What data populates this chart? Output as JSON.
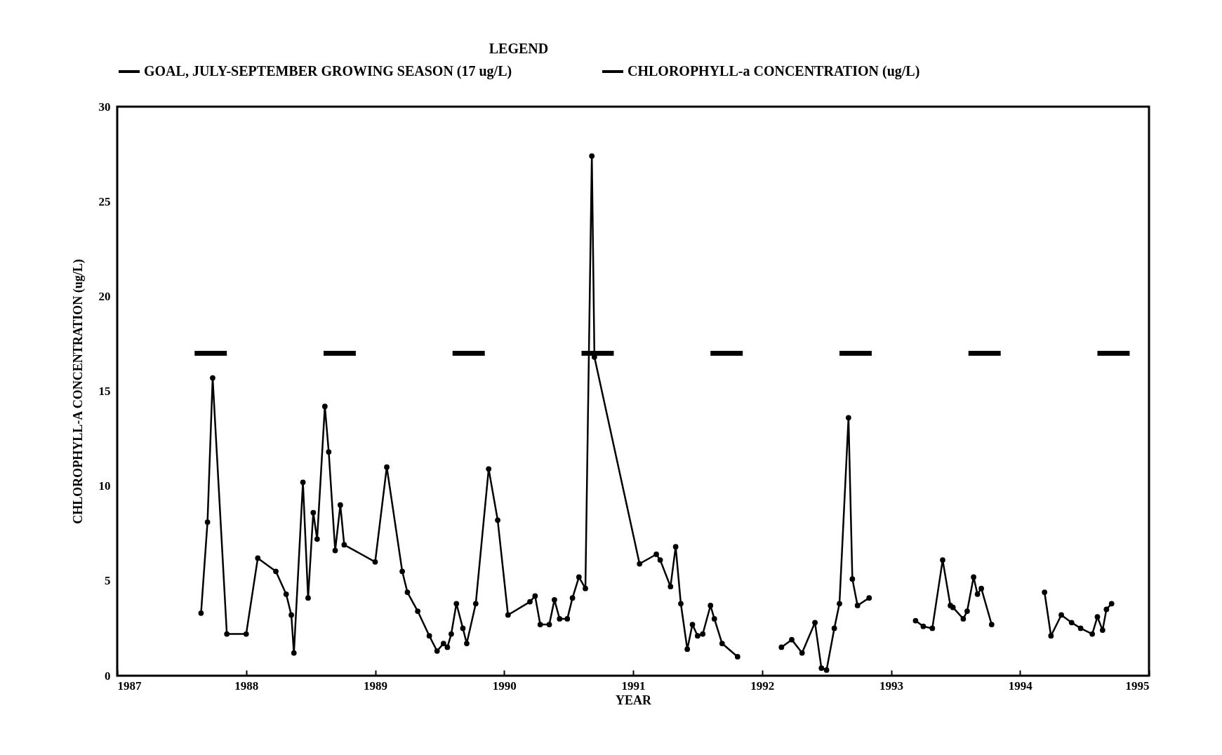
{
  "chart_data": {
    "type": "line",
    "xlabel": "YEAR",
    "ylabel": "CHLOROPHYLL-A CONCENTRATION (ug/L)",
    "legend_title": "LEGEND",
    "legend": "top",
    "grid": false,
    "xlim": [
      1987,
      1995
    ],
    "xticks": [
      1987,
      1988,
      1989,
      1990,
      1991,
      1992,
      1993,
      1994,
      1995
    ],
    "ylim": [
      0,
      30
    ],
    "yticks": [
      0,
      5,
      10,
      15,
      20,
      25,
      30
    ],
    "series": [
      {
        "name": "GOAL, JULY-SEPTEMBER GROWING SEASON (17 ug/L)",
        "color": "#000000",
        "marker": "none",
        "x": [
          1987.6,
          1987.85,
          null,
          1988.6,
          1988.85,
          null,
          1989.6,
          1989.85,
          null,
          1990.6,
          1990.85,
          null,
          1991.6,
          1991.85,
          null,
          1992.6,
          1992.85,
          null,
          1993.6,
          1993.85,
          null,
          1994.6,
          1994.85
        ],
        "values": [
          17,
          17,
          null,
          17,
          17,
          null,
          17,
          17,
          null,
          17,
          17,
          null,
          17,
          17,
          null,
          17,
          17,
          null,
          17,
          17,
          null,
          17,
          17
        ]
      },
      {
        "name": "CHLOROPHYLL-a CONCENTRATION (ug/L)",
        "color": "#000000",
        "marker": "circle",
        "x": [
          1987.65,
          1987.7,
          1987.74,
          1987.85,
          1988.0,
          1988.09,
          1988.23,
          1988.31,
          1988.35,
          1988.37,
          1988.44,
          1988.48,
          1988.52,
          1988.55,
          1988.61,
          1988.64,
          1988.69,
          1988.73,
          1988.76,
          1989.0,
          1989.09,
          1989.21,
          1989.25,
          1989.33,
          1989.42,
          1989.48,
          1989.53,
          1989.56,
          1989.59,
          1989.63,
          1989.68,
          1989.71,
          1989.78,
          1989.88,
          1989.95,
          1990.03,
          1990.2,
          1990.24,
          1990.28,
          1990.35,
          1990.39,
          1990.43,
          1990.49,
          1990.53,
          1990.58,
          1990.63,
          1990.68,
          1990.7,
          1991.05,
          1991.18,
          1991.21,
          1991.29,
          1991.33,
          1991.37,
          1991.42,
          1991.46,
          1991.5,
          1991.54,
          1991.6,
          1991.63,
          1991.69,
          1991.81,
          1992.0,
          1992.15,
          1992.23,
          1992.31,
          1992.41,
          1992.46,
          1992.5,
          1992.56,
          1992.6,
          1992.67,
          1992.7,
          1992.74,
          1992.83,
          1993.0,
          1993.19,
          1993.25,
          1993.32,
          1993.4,
          1993.46,
          1993.48,
          1993.56,
          1993.59,
          1993.64,
          1993.67,
          1993.7,
          1993.78,
          1994.0,
          1994.19,
          1994.24,
          1994.32,
          1994.4,
          1994.47,
          1994.56,
          1994.6,
          1994.64,
          1994.67,
          1994.71
        ],
        "values": [
          3.3,
          8.1,
          15.7,
          2.2,
          2.2,
          6.2,
          5.5,
          4.3,
          3.2,
          1.2,
          10.2,
          4.1,
          8.6,
          7.2,
          14.2,
          11.8,
          6.6,
          9.0,
          6.9,
          6.0,
          11.0,
          5.5,
          4.4,
          3.4,
          2.1,
          1.3,
          1.7,
          1.5,
          2.2,
          3.8,
          2.5,
          1.7,
          3.8,
          10.9,
          8.2,
          3.2,
          3.9,
          4.2,
          2.7,
          2.7,
          4.0,
          3.0,
          3.0,
          4.1,
          5.2,
          4.6,
          27.4,
          16.8,
          5.9,
          6.4,
          6.1,
          4.7,
          6.8,
          3.8,
          1.4,
          2.7,
          2.1,
          2.2,
          3.7,
          3.0,
          1.7,
          1.0,
          null,
          1.5,
          1.9,
          1.2,
          2.8,
          0.4,
          0.3,
          2.5,
          3.8,
          13.6,
          5.1,
          3.7,
          4.1,
          null,
          2.9,
          2.6,
          2.5,
          6.1,
          3.7,
          3.6,
          3.0,
          3.4,
          5.2,
          4.3,
          4.6,
          2.7,
          null,
          4.4,
          2.1,
          3.2,
          2.8,
          2.5,
          2.2,
          3.1,
          2.4,
          3.5,
          3.8
        ]
      }
    ]
  }
}
